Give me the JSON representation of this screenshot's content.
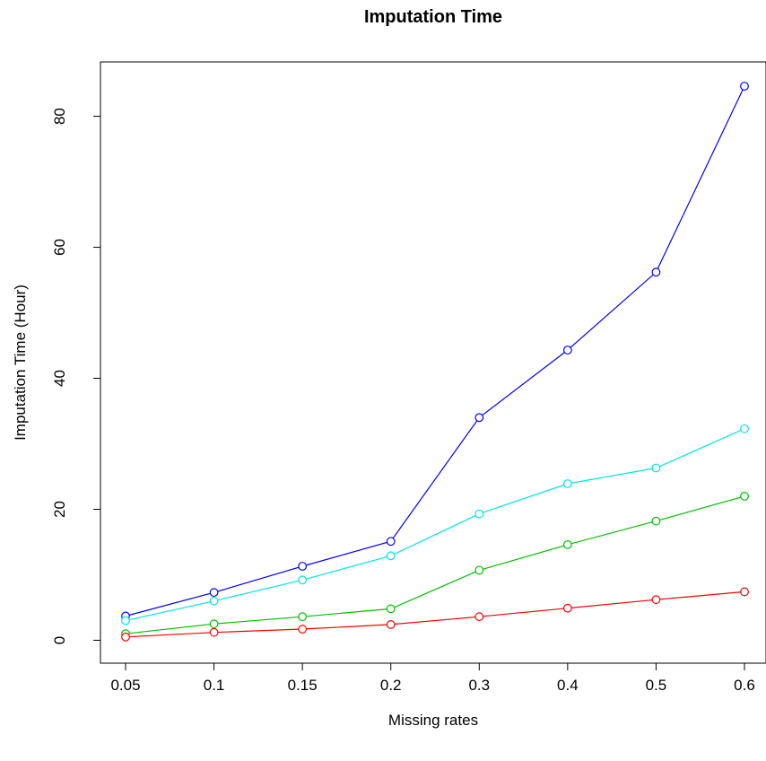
{
  "chart_data": {
    "type": "line",
    "title": "Imputation Time",
    "xlabel": "Missing rates",
    "ylabel": "Imputation Time (Hour)",
    "categories": [
      "0.05",
      "0.1",
      "0.15",
      "0.2",
      "0.3",
      "0.4",
      "0.5",
      "0.6"
    ],
    "yticks": [
      "0",
      "20",
      "40",
      "60",
      "80"
    ],
    "ylim": [
      -3.5,
      88.3
    ],
    "grid": false,
    "legend": "none",
    "series": [
      {
        "color": "#0000ff",
        "values": [
          3.7,
          7.3,
          11.3,
          15.1,
          34.0,
          44.3,
          56.2,
          84.6
        ]
      },
      {
        "color": "#00e5e5",
        "values": [
          3.0,
          6.0,
          9.2,
          12.9,
          19.3,
          23.9,
          26.3,
          32.3
        ]
      },
      {
        "color": "#00c000",
        "values": [
          1.0,
          2.5,
          3.6,
          4.8,
          10.7,
          14.6,
          18.2,
          22.0
        ]
      },
      {
        "color": "#ff0000",
        "values": [
          0.5,
          1.2,
          1.7,
          2.4,
          3.6,
          4.9,
          6.2,
          7.4
        ]
      }
    ]
  }
}
